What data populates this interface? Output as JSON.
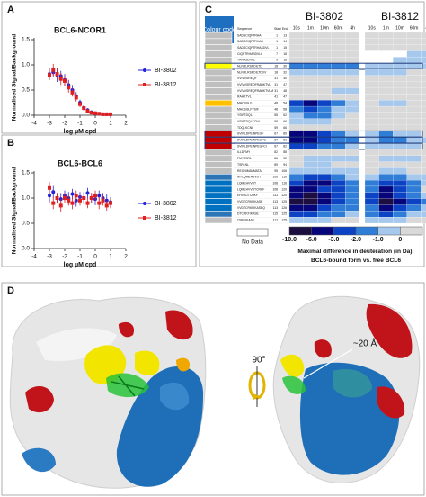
{
  "panel_labels": {
    "a": "A",
    "b": "B",
    "c": "C",
    "d": "D"
  },
  "chart_data": [
    {
      "type": "scatter",
      "title": "BCL6-NCOR1",
      "x_label": "log µM cpd",
      "y_label": "Normalised Signal/Background",
      "xlim": [
        -4,
        2
      ],
      "xticks": [
        -4,
        -3,
        -2,
        -1,
        0,
        1,
        2
      ],
      "ylim": [
        0,
        1.5
      ],
      "yticks": [
        {
          "value": 0,
          "label": "0.0"
        },
        0.5,
        {
          "value": 1,
          "label": "1.0"
        },
        1.5
      ],
      "x": [
        -3,
        -2.75,
        -2.5,
        -2.25,
        -2,
        -1.75,
        -1.5,
        -1.25,
        -1,
        -0.75,
        -0.5,
        -0.25,
        0,
        0.25,
        0.5,
        0.75,
        1
      ],
      "legend": "right",
      "series": [
        {
          "name": "BI-3802",
          "color": "#2323d6",
          "marker": "circle",
          "values": [
            0.82,
            0.85,
            0.8,
            0.78,
            0.7,
            0.6,
            0.5,
            0.38,
            0.25,
            0.15,
            0.1,
            0.06,
            0.04,
            0.03,
            0.02,
            0.02,
            0.02
          ],
          "errors": [
            0.12,
            0.1,
            0.14,
            0.1,
            0.12,
            0.1,
            0.1,
            0.08,
            0.06,
            0.05,
            0.04,
            0.03,
            0.02,
            0.02,
            0.02,
            0.02,
            0.02
          ]
        },
        {
          "name": "BI-3812",
          "color": "#e02020",
          "marker": "square",
          "values": [
            0.8,
            0.9,
            0.82,
            0.72,
            0.68,
            0.55,
            0.45,
            0.35,
            0.22,
            0.14,
            0.08,
            0.05,
            0.04,
            0.03,
            0.02,
            0.02,
            0.02
          ],
          "errors": [
            0.1,
            0.12,
            0.1,
            0.12,
            0.1,
            0.1,
            0.08,
            0.08,
            0.06,
            0.04,
            0.04,
            0.03,
            0.02,
            0.02,
            0.02,
            0.02,
            0.02
          ]
        }
      ]
    },
    {
      "type": "scatter",
      "title": "BCL6-BCL6",
      "x_label": "log µM cpd",
      "y_label": "Normalised Signal/Background",
      "xlim": [
        -4,
        2
      ],
      "xticks": [
        -4,
        -3,
        -2,
        -1,
        0,
        1,
        2
      ],
      "ylim": [
        0,
        1.5
      ],
      "yticks": [
        {
          "value": 0,
          "label": "0.0"
        },
        0.5,
        {
          "value": 1,
          "label": "1.0"
        },
        1.5
      ],
      "x": [
        -3,
        -2.75,
        -2.5,
        -2.25,
        -2,
        -1.75,
        -1.5,
        -1.25,
        -1,
        -0.75,
        -0.5,
        -0.25,
        0,
        0.25,
        0.5,
        0.75,
        1
      ],
      "legend": "right",
      "series": [
        {
          "name": "BI-3802",
          "color": "#2323d6",
          "marker": "circle",
          "values": [
            1.05,
            1.12,
            1.0,
            0.98,
            1.05,
            1.0,
            1.08,
            0.95,
            1.02,
            1.0,
            1.1,
            1.0,
            0.98,
            1.05,
            1.0,
            0.95,
            0.92
          ],
          "errors": [
            0.15,
            0.12,
            0.1,
            0.12,
            0.1,
            0.12,
            0.1,
            0.12,
            0.1,
            0.12,
            0.1,
            0.1,
            0.12,
            0.1,
            0.1,
            0.12,
            0.1
          ]
        },
        {
          "name": "BI-3812",
          "color": "#e02020",
          "marker": "square",
          "values": [
            1.2,
            0.9,
            1.0,
            0.85,
            1.0,
            0.95,
            0.9,
            1.05,
            0.95,
            1.0,
            0.9,
            1.0,
            1.05,
            0.9,
            0.95,
            0.85,
            0.9
          ],
          "errors": [
            0.12,
            0.12,
            0.1,
            0.12,
            0.1,
            0.1,
            0.12,
            0.1,
            0.1,
            0.12,
            0.1,
            0.1,
            0.1,
            0.12,
            0.1,
            0.1,
            0.1
          ]
        }
      ]
    }
  ],
  "hdx_table": {
    "colour_code_label": "Colour code",
    "columns": [
      "Sequence",
      "Start",
      "End"
    ],
    "groups": [
      {
        "name": "BI-3802",
        "timepoints": [
          "10s",
          "1m",
          "10m",
          "60m",
          "4h"
        ]
      },
      {
        "name": "BI-3812",
        "timepoints": [
          "10s",
          "1m",
          "10m",
          "60m",
          "4h"
        ]
      }
    ],
    "rows": [
      {
        "sequence": "SADSCIQFTRHA",
        "start": 1,
        "end": 13,
        "code": "#bfbfbf",
        "values": [
          0,
          0,
          0,
          0,
          0,
          0,
          0,
          0,
          0,
          0
        ]
      },
      {
        "sequence": "SADSCIQFTRHAS",
        "start": 1,
        "end": 14,
        "code": "#bfbfbf",
        "values": [
          0,
          0,
          0,
          0,
          0,
          0,
          0,
          0,
          0,
          0
        ]
      },
      {
        "sequence": "SADSCIQFTRHASDVL",
        "start": 1,
        "end": 15,
        "code": "#bfbfbf",
        "values": [
          0,
          0,
          0,
          0,
          0,
          0,
          0,
          0,
          0,
          0
        ]
      },
      {
        "sequence": "CIQFTRHASDVLL",
        "start": 7,
        "end": 18,
        "code": "#bfbfbf",
        "values": [
          0,
          0,
          0,
          0,
          0,
          null,
          null,
          null,
          -1,
          -1
        ]
      },
      {
        "sequence": "TRHASDVLL",
        "start": 9,
        "end": 18,
        "code": "#bfbfbf",
        "values": [
          0,
          0,
          0,
          0,
          0,
          null,
          null,
          -1,
          -1,
          -1
        ]
      },
      {
        "sequence": "NLNRLRSRDILTD",
        "start": 18,
        "end": 30,
        "code": "#ffff00",
        "outlined": true,
        "values": [
          -2,
          -2,
          -2,
          -2,
          -2,
          -1,
          -1,
          -1,
          -1,
          -1
        ]
      },
      {
        "sequence": "NLNRLRSRDILTDVV",
        "start": 18,
        "end": 32,
        "code": "#bfbfbf",
        "values": [
          -1,
          -1,
          -1,
          -1,
          -1,
          -1,
          -1,
          -1,
          0,
          0
        ]
      },
      {
        "sequence": "VVIVVSREQF",
        "start": 31,
        "end": 40,
        "code": "#bfbfbf",
        "values": [
          0,
          0,
          0,
          0,
          0,
          0,
          0,
          0,
          0,
          0
        ]
      },
      {
        "sequence": "VVIVVSREQFRAHKTVL",
        "start": 31,
        "end": 47,
        "code": "#bfbfbf",
        "values": [
          0,
          0,
          0,
          0,
          0,
          0,
          0,
          0,
          0,
          0
        ]
      },
      {
        "sequence": "VVIVVSREQFRAHKTVLM",
        "start": 31,
        "end": 48,
        "code": "#bfbfbf",
        "values": [
          0,
          0,
          0,
          -1,
          -1,
          0,
          0,
          0,
          0,
          0
        ]
      },
      {
        "sequence": "RAHKTVL",
        "start": 41,
        "end": 47,
        "code": "#bfbfbf",
        "values": [
          0,
          0,
          0,
          0,
          0,
          0,
          0,
          0,
          0,
          0
        ]
      },
      {
        "sequence": "MACSGLF",
        "start": 48,
        "end": 54,
        "code": "#ffc000",
        "values": [
          -3,
          -6,
          -3,
          -2,
          -1,
          0,
          -1,
          -1,
          0,
          0
        ]
      },
      {
        "sequence": "MACSGLFYSIF",
        "start": 48,
        "end": 58,
        "code": "#bfbfbf",
        "values": [
          -2,
          -3,
          -2,
          -1,
          -1,
          0,
          0,
          0,
          0,
          0
        ]
      },
      {
        "sequence": "YSIFTDQL",
        "start": 55,
        "end": 62,
        "code": "#bfbfbf",
        "values": [
          -1,
          -2,
          -2,
          -1,
          0,
          0,
          0,
          0,
          0,
          0
        ]
      },
      {
        "sequence": "YSIFTDQLKCNL",
        "start": 55,
        "end": 66,
        "code": "#bfbfbf",
        "values": [
          -1,
          -1,
          -1,
          0,
          0,
          0,
          0,
          0,
          0,
          0
        ]
      },
      {
        "sequence": "TDQLKCNL",
        "start": 59,
        "end": 66,
        "code": "#bfbfbf",
        "values": [
          0,
          0,
          0,
          0,
          0,
          0,
          0,
          0,
          0,
          0
        ]
      },
      {
        "sequence": "SVINLDPEINPEGF",
        "start": 67,
        "end": 80,
        "code": "#c00000",
        "outlined": true,
        "values": [
          -6,
          -6,
          -3,
          -2,
          -1,
          -1,
          -2,
          -1,
          -1,
          0
        ]
      },
      {
        "sequence": "SVINLDPEINPEGFC",
        "start": 67,
        "end": 81,
        "code": "#c00000",
        "outlined": true,
        "values": [
          -6,
          -6,
          -3,
          -2,
          -2,
          -1,
          -2,
          -2,
          -1,
          -1
        ]
      },
      {
        "sequence": "SVINLDPEINPEGFCI",
        "start": 67,
        "end": 82,
        "code": "#c00000",
        "outlined": true,
        "values": [
          -3,
          -3,
          -2,
          -2,
          -1,
          -1,
          -1,
          -1,
          -1,
          0
        ]
      },
      {
        "sequence": "ILLDFMY",
        "start": 82,
        "end": 88,
        "code": "#bfbfbf",
        "values": [
          0,
          0,
          0,
          0,
          0,
          0,
          0,
          0,
          0,
          0
        ]
      },
      {
        "sequence": "FMYTSRL",
        "start": 86,
        "end": 92,
        "code": "#bfbfbf",
        "values": [
          0,
          -1,
          -1,
          -1,
          -1,
          0,
          -1,
          -1,
          -1,
          0
        ]
      },
      {
        "sequence": "TSRLNL",
        "start": 89,
        "end": 94,
        "code": "#bfbfbf",
        "values": [
          0,
          -1,
          -1,
          0,
          0,
          0,
          0,
          0,
          0,
          0
        ]
      },
      {
        "sequence": "REGNIMAVMATA",
        "start": 95,
        "end": 106,
        "code": "#bfbfbf",
        "values": [
          -1,
          -1,
          -1,
          -1,
          -1,
          0,
          -1,
          -1,
          0,
          0
        ]
      },
      {
        "sequence": "MYLQMEHVVDT",
        "start": 106,
        "end": 116,
        "code": "#2e75b6",
        "values": [
          -2,
          -3,
          -3,
          -2,
          -1,
          -1,
          -2,
          -2,
          -1,
          -1
        ]
      },
      {
        "sequence": "LQMEHVVDT",
        "start": 108,
        "end": 116,
        "code": "#0070c0",
        "values": [
          -3,
          -6,
          -6,
          -3,
          -2,
          -2,
          -3,
          -3,
          -2,
          -1
        ]
      },
      {
        "sequence": "LQMEHVVDTCRKF",
        "start": 108,
        "end": 120,
        "code": "#0070c0",
        "values": [
          -6,
          -6,
          -3,
          -3,
          -2,
          -2,
          -6,
          -3,
          -2,
          0
        ]
      },
      {
        "sequence": "EHVVDTCRKF",
        "start": 111,
        "end": 120,
        "code": "#0070c0",
        "values": [
          -6,
          -10,
          -6,
          -3,
          -2,
          -3,
          -6,
          -3,
          -2,
          -1
        ]
      },
      {
        "sequence": "VVDTCRKFIKASE",
        "start": 113,
        "end": 125,
        "code": "#0070c0",
        "values": [
          -10,
          -10,
          -6,
          -3,
          -2,
          -3,
          -10,
          -6,
          -3,
          -2
        ]
      },
      {
        "sequence": "VVDTCRKFIKASEQ",
        "start": 113,
        "end": 126,
        "code": "#0070c0",
        "values": [
          -6,
          -6,
          -3,
          -2,
          -2,
          -2,
          -6,
          -3,
          -2,
          -1
        ]
      },
      {
        "sequence": "DTCRKFIKASE",
        "start": 115,
        "end": 125,
        "code": "#2e75b6",
        "values": [
          -3,
          -3,
          -2,
          -2,
          -1,
          -2,
          -3,
          -2,
          -1,
          -1
        ]
      },
      {
        "sequence": "CRKFIKASE",
        "start": 117,
        "end": 125,
        "code": "#bfbfbf",
        "values": [
          -1,
          -1,
          -1,
          0,
          0,
          -1,
          -1,
          -1,
          0,
          0
        ]
      }
    ],
    "colorscale": [
      {
        "value": -10,
        "label": "-10.0",
        "color": "#1c0f3f"
      },
      {
        "value": -6,
        "label": "-6.0",
        "color": "#06067a"
      },
      {
        "value": -3,
        "label": "-3.0",
        "color": "#0b43c4"
      },
      {
        "value": -2,
        "label": "-2.0",
        "color": "#2f7dd6"
      },
      {
        "value": -1,
        "label": "-1.0",
        "color": "#a6c8ec"
      },
      {
        "value": 0,
        "color": "#d9d9d9"
      }
    ],
    "no_data_label": "No Data",
    "legend_title": "Maximal difference in deuteration (in Da):",
    "legend_subtitle": "BCL6-bound form vs. free BCL6"
  },
  "panel_d": {
    "rotation_label": "90°",
    "distance_label": "~20 Å"
  }
}
